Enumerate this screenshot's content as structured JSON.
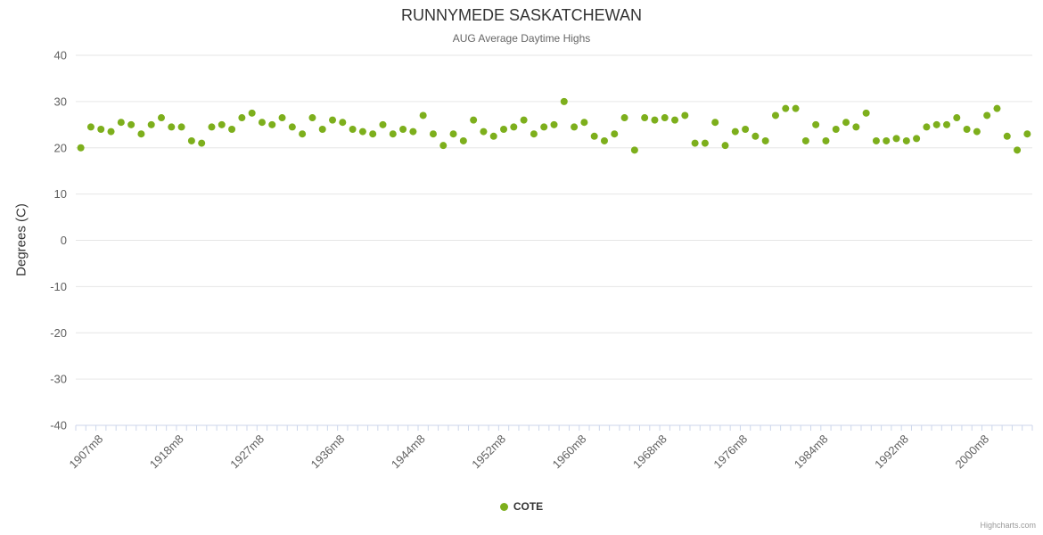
{
  "credits": "Highcharts.com",
  "colors": {
    "grid": "#e6e6e6",
    "axis_line": "#ccd6eb",
    "axis_label": "#606060",
    "title": "#333333",
    "subtitle": "#666666",
    "credits": "#999999"
  },
  "chart_data": {
    "type": "scatter",
    "title": "RUNNYMEDE SASKATCHEWAN",
    "subtitle": "AUG Average Daytime Highs",
    "ylabel": "Degrees (C)",
    "ylim": [
      -40,
      40
    ],
    "ytick_interval": 10,
    "yticks": [
      40,
      30,
      20,
      10,
      0,
      -10,
      -20,
      -30,
      -40
    ],
    "grid": "horizontal",
    "legend_position": "bottom-center",
    "xtick_labels": [
      "1907m8",
      "1918m8",
      "1927m8",
      "1936m8",
      "1944m8",
      "1952m8",
      "1960m8",
      "1968m8",
      "1976m8",
      "1984m8",
      "1992m8",
      "2000m8"
    ],
    "xtick_indices": [
      2,
      10,
      18,
      26,
      34,
      42,
      50,
      58,
      66,
      74,
      82,
      90
    ],
    "series": [
      {
        "name": "COTE",
        "color": "#7daf1c",
        "marker_radius": 4,
        "categories": [
          "1905m8",
          "1906m8",
          "1907m8",
          "1908m8",
          "1910m8",
          "1911m8",
          "1913m8",
          "1914m8",
          "1916m8",
          "1917m8",
          "1918m8",
          "1919m8",
          "1920m8",
          "1922m8",
          "1923m8",
          "1924m8",
          "1925m8",
          "1926m8",
          "1927m8",
          "1928m8",
          "1930m8",
          "1931m8",
          "1932m8",
          "1933m8",
          "1934m8",
          "1935m8",
          "1936m8",
          "1937m8",
          "1938m8",
          "1939m8",
          "1940m8",
          "1941m8",
          "1942m8",
          "1943m8",
          "1944m8",
          "1945m8",
          "1946m8",
          "1947m8",
          "1948m8",
          "1949m8",
          "1950m8",
          "1951m8",
          "1952m8",
          "1953m8",
          "1954m8",
          "1955m8",
          "1956m8",
          "1957m8",
          "1958m8",
          "1959m8",
          "1960m8",
          "1961m8",
          "1962m8",
          "1963m8",
          "1964m8",
          "1965m8",
          "1966m8",
          "1967m8",
          "1968m8",
          "1969m8",
          "1970m8",
          "1971m8",
          "1972m8",
          "1973m8",
          "1974m8",
          "1975m8",
          "1976m8",
          "1977m8",
          "1978m8",
          "1979m8",
          "1980m8",
          "1981m8",
          "1982m8",
          "1983m8",
          "1984m8",
          "1985m8",
          "1986m8",
          "1987m8",
          "1988m8",
          "1989m8",
          "1990m8",
          "1991m8",
          "1992m8",
          "1993m8",
          "1994m8",
          "1995m8",
          "1996m8",
          "1997m8",
          "1998m8",
          "1999m8",
          "2000m8",
          "2001m8",
          "2002m8",
          "2003m8",
          "2004m8"
        ],
        "values": [
          20,
          24.5,
          24,
          23.5,
          25.5,
          25,
          23,
          25,
          26.5,
          24.5,
          24.5,
          21.5,
          21,
          24.5,
          25,
          24,
          26.5,
          27.5,
          25.5,
          25,
          26.5,
          24.5,
          23,
          26.5,
          24,
          26,
          25.5,
          24,
          23.5,
          23,
          25,
          23,
          24,
          23.5,
          27,
          23,
          20.5,
          23,
          21.5,
          26,
          23.5,
          22.5,
          24,
          24.5,
          26,
          23,
          24.5,
          25,
          30,
          24.5,
          25.5,
          22.5,
          21.5,
          23,
          26.5,
          19.5,
          26.5,
          26,
          26.5,
          26,
          27,
          21,
          21,
          25.5,
          20.5,
          23.5,
          24,
          22.5,
          21.5,
          27,
          28.5,
          28.5,
          21.5,
          25,
          21.5,
          24,
          25.5,
          24.5,
          27.5,
          21.5,
          21.5,
          22,
          21.5,
          22,
          24.5,
          25,
          25,
          26.5,
          24,
          23.5,
          27,
          28.5,
          22.5,
          19.5,
          23
        ]
      }
    ]
  }
}
